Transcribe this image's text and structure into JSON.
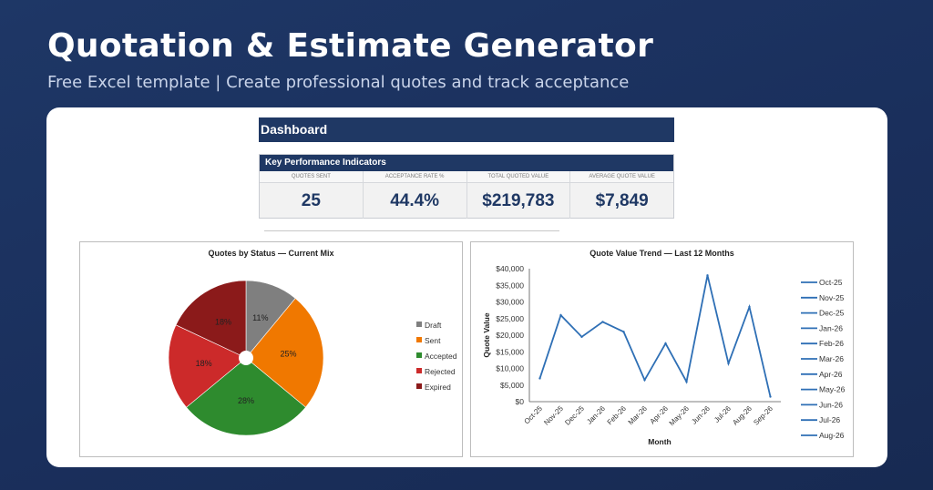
{
  "hero": {
    "title": "Quotation & Estimate Generator",
    "subtitle": "Free Excel template  |  Create professional quotes and track acceptance"
  },
  "dashboard": {
    "header": "Dashboard",
    "kpi_title": "Key Performance Indicators",
    "kpis": [
      {
        "label": "QUOTES SENT",
        "value": "25"
      },
      {
        "label": "ACCEPTANCE RATE %",
        "value": "44.4%"
      },
      {
        "label": "TOTAL QUOTED VALUE",
        "value": "$219,783"
      },
      {
        "label": "AVERAGE QUOTE VALUE",
        "value": "$7,849"
      }
    ]
  },
  "colors": {
    "navy": "#1f3864",
    "draft": "#7f7f7f",
    "sent": "#f07800",
    "accepted": "#2e8b2e",
    "rejected": "#cc2a2a",
    "expired": "#8b1a1a",
    "line": "#2e6fb5"
  },
  "chart_data": [
    {
      "type": "pie",
      "title": "Quotes by Status — Current Mix",
      "categories": [
        "Draft",
        "Sent",
        "Accepted",
        "Rejected",
        "Expired"
      ],
      "values": [
        11,
        25,
        28,
        18,
        18
      ],
      "data_labels": [
        "11%",
        "25%",
        "28%",
        "18%",
        "18%"
      ],
      "legend": "right"
    },
    {
      "type": "line",
      "title": "Quote Value Trend — Last 12 Months",
      "xlabel": "Month",
      "ylabel": "Quote Value",
      "x": [
        "Oct-25",
        "Nov-25",
        "Dec-25",
        "Jan-26",
        "Feb-26",
        "Mar-26",
        "Apr-26",
        "May-26",
        "Jun-26",
        "Jul-26",
        "Aug-26",
        "Sep-26"
      ],
      "values": [
        7000,
        26000,
        19500,
        24000,
        21000,
        6500,
        17500,
        6000,
        38000,
        11500,
        28500,
        1500
      ],
      "ylim": [
        0,
        40000
      ],
      "yticks": [
        "$0",
        "$5,000",
        "$10,000",
        "$15,000",
        "$20,000",
        "$25,000",
        "$30,000",
        "$35,000",
        "$40,000"
      ],
      "legend_entries": [
        "Oct-25",
        "Nov-25",
        "Dec-25",
        "Jan-26",
        "Feb-26",
        "Mar-26",
        "Apr-26",
        "May-26",
        "Jun-26",
        "Jul-26",
        "Aug-26"
      ],
      "legend": "right"
    }
  ]
}
